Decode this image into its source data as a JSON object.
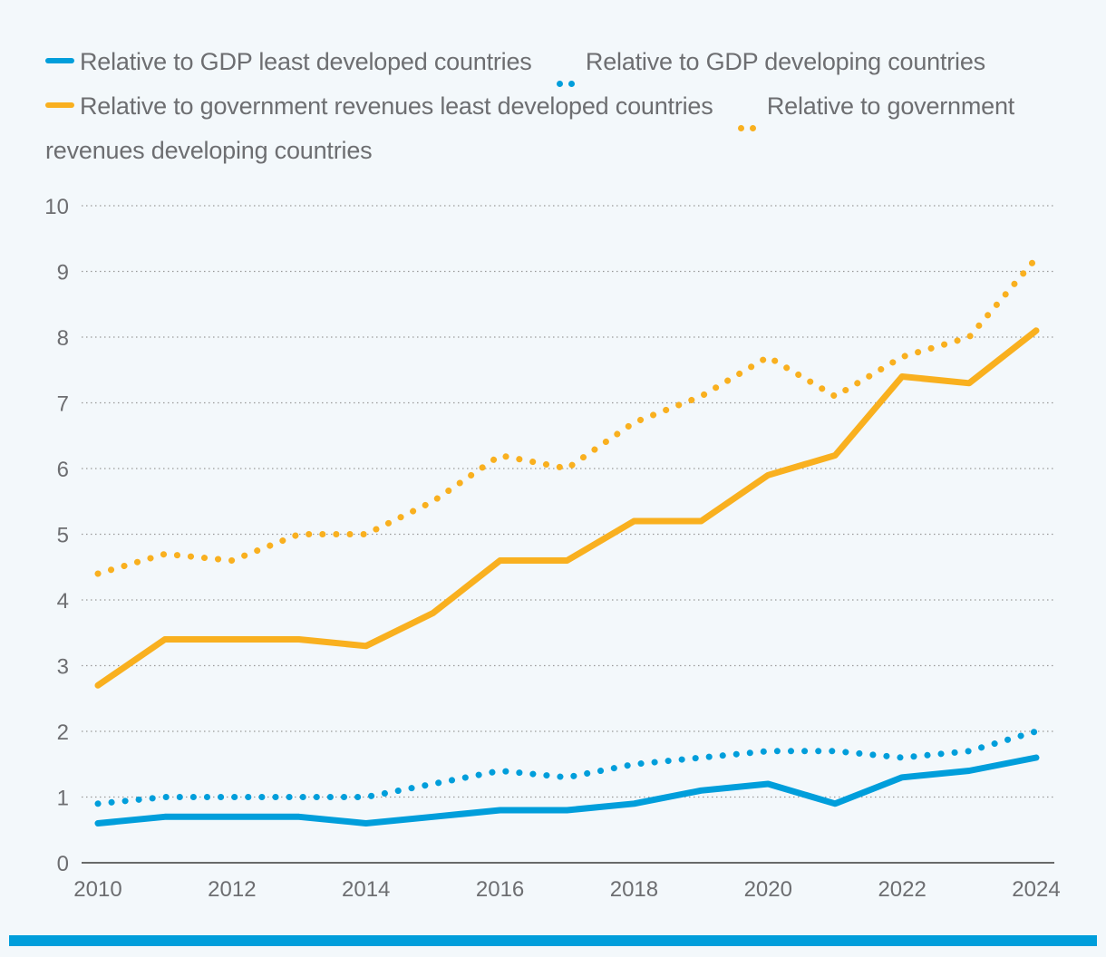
{
  "chart_data": {
    "type": "line",
    "title": "",
    "xlabel": "",
    "ylabel": "",
    "x": [
      2010,
      2011,
      2012,
      2013,
      2014,
      2015,
      2016,
      2017,
      2018,
      2019,
      2020,
      2021,
      2022,
      2023,
      2024
    ],
    "xticks": [
      "2010",
      "2012",
      "2014",
      "2016",
      "2018",
      "2020",
      "2022",
      "2024"
    ],
    "yticks": [
      "0",
      "1",
      "2",
      "3",
      "4",
      "5",
      "6",
      "7",
      "8",
      "9",
      "10"
    ],
    "ylim": [
      0,
      10
    ],
    "grid": "horizontal dotted",
    "legend_position": "top",
    "series": [
      {
        "name": "Relative to GDP least developed countries",
        "style": "solid",
        "color": "#009edb",
        "values": [
          0.6,
          0.7,
          0.7,
          0.7,
          0.6,
          0.7,
          0.8,
          0.8,
          0.9,
          1.1,
          1.2,
          0.9,
          1.3,
          1.4,
          1.6
        ]
      },
      {
        "name": "Relative to GDP developing countries",
        "style": "dotted",
        "color": "#009edb",
        "values": [
          0.9,
          1.0,
          1.0,
          1.0,
          1.0,
          1.2,
          1.4,
          1.3,
          1.5,
          1.6,
          1.7,
          1.7,
          1.6,
          1.7,
          2.0
        ]
      },
      {
        "name": "Relative to government revenues least developed countries",
        "style": "solid",
        "color": "#f9b01f",
        "values": [
          2.7,
          3.4,
          3.4,
          3.4,
          3.3,
          3.8,
          4.6,
          4.6,
          5.2,
          5.2,
          5.9,
          6.2,
          7.4,
          7.3,
          8.1
        ]
      },
      {
        "name": "Relative to government revenues developing countries",
        "style": "dotted",
        "color": "#f9b01f",
        "values": [
          4.4,
          4.7,
          4.6,
          5.0,
          5.0,
          5.5,
          6.2,
          6.0,
          6.7,
          7.1,
          7.7,
          7.1,
          7.7,
          8.0,
          9.2
        ]
      }
    ]
  },
  "colors": {
    "blue": "#009edb",
    "orange": "#f9b01f",
    "grid": "#9a9a9a",
    "text": "#6d6e71",
    "background": "#f3f8fb"
  }
}
